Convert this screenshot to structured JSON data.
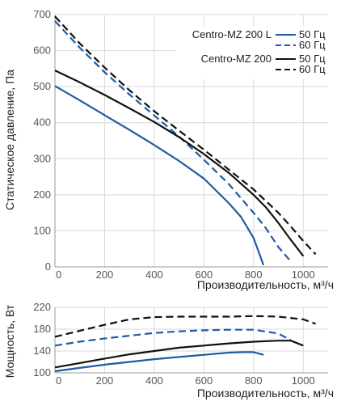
{
  "chart_data": [
    {
      "type": "line",
      "id": "pressure",
      "xlabel": "Производительность, м³/ч",
      "ylabel": "Статическое давление, Па",
      "xlim": [
        0,
        1100
      ],
      "ylim": [
        0,
        700
      ],
      "x_ticks": [
        "0",
        "200",
        "400",
        "600",
        "800",
        "1000"
      ],
      "y_ticks": [
        "0",
        "100",
        "200",
        "300",
        "400",
        "500",
        "600",
        "700"
      ],
      "grid": true,
      "legend": {
        "placement": "top-right",
        "groups": [
          {
            "label": "Centro-MZ 200 L",
            "entries": [
              "50 Гц",
              "60 Гц"
            ]
          },
          {
            "label": "Centro-MZ 200",
            "entries": [
              "50 Гц",
              "60 Гц"
            ]
          }
        ]
      },
      "series": [
        {
          "model": "Centro-MZ 200 L",
          "freq": "50 Гц",
          "color": "#1f5aa6",
          "dash": "solid",
          "points": [
            [
              0,
              502
            ],
            [
              100,
              462
            ],
            [
              200,
              421
            ],
            [
              300,
              380
            ],
            [
              400,
              338
            ],
            [
              500,
              294
            ],
            [
              600,
              245
            ],
            [
              700,
              177
            ],
            [
              750,
              138
            ],
            [
              800,
              80
            ],
            [
              840,
              5
            ]
          ]
        },
        {
          "model": "Centro-MZ 200 L",
          "freq": "60 Гц",
          "color": "#1f5aa6",
          "dash": "dashed",
          "points": [
            [
              0,
              682
            ],
            [
              100,
              608
            ],
            [
              200,
              540
            ],
            [
              300,
              478
            ],
            [
              400,
              420
            ],
            [
              500,
              362
            ],
            [
              600,
              297
            ],
            [
              700,
              230
            ],
            [
              800,
              150
            ],
            [
              850,
              107
            ],
            [
              900,
              55
            ],
            [
              950,
              15
            ]
          ]
        },
        {
          "model": "Centro-MZ 200",
          "freq": "50 Гц",
          "color": "#111111",
          "dash": "solid",
          "points": [
            [
              0,
              545
            ],
            [
              100,
              512
            ],
            [
              200,
              477
            ],
            [
              300,
              440
            ],
            [
              400,
              402
            ],
            [
              500,
              360
            ],
            [
              600,
              313
            ],
            [
              700,
              261
            ],
            [
              800,
              200
            ],
            [
              850,
              165
            ],
            [
              900,
              122
            ],
            [
              950,
              75
            ],
            [
              1000,
              30
            ]
          ]
        },
        {
          "model": "Centro-MZ 200",
          "freq": "60 Гц",
          "color": "#111111",
          "dash": "dashed",
          "points": [
            [
              0,
              695
            ],
            [
              100,
              620
            ],
            [
              200,
              553
            ],
            [
              300,
              490
            ],
            [
              400,
              432
            ],
            [
              500,
              378
            ],
            [
              600,
              325
            ],
            [
              700,
              270
            ],
            [
              800,
              215
            ],
            [
              900,
              150
            ],
            [
              950,
              112
            ],
            [
              1000,
              72
            ],
            [
              1050,
              35
            ]
          ]
        }
      ]
    },
    {
      "type": "line",
      "id": "power",
      "xlabel": "Производительность, м³/ч",
      "ylabel": "Мощность, Вт",
      "xlim": [
        0,
        1100
      ],
      "ylim": [
        100,
        220
      ],
      "x_ticks": [
        "0",
        "200",
        "400",
        "600",
        "800",
        "1000"
      ],
      "y_ticks": [
        "100",
        "140",
        "180",
        "220"
      ],
      "grid": true,
      "series": [
        {
          "model": "Centro-MZ 200 L",
          "freq": "50 Гц",
          "color": "#1f5aa6",
          "dash": "solid",
          "points": [
            [
              0,
              103
            ],
            [
              100,
              109
            ],
            [
              200,
              115
            ],
            [
              300,
              120
            ],
            [
              400,
              125
            ],
            [
              500,
              129
            ],
            [
              600,
              133
            ],
            [
              700,
              137
            ],
            [
              760,
              138
            ],
            [
              800,
              138
            ],
            [
              840,
              133
            ]
          ]
        },
        {
          "model": "Centro-MZ 200 L",
          "freq": "60 Гц",
          "color": "#1f5aa6",
          "dash": "dashed",
          "points": [
            [
              0,
              150
            ],
            [
              100,
              157
            ],
            [
              200,
              163
            ],
            [
              300,
              168
            ],
            [
              400,
              173
            ],
            [
              500,
              176
            ],
            [
              600,
              178
            ],
            [
              700,
              179
            ],
            [
              800,
              179
            ],
            [
              900,
              172
            ],
            [
              950,
              160
            ]
          ]
        },
        {
          "model": "Centro-MZ 200",
          "freq": "50 Гц",
          "color": "#111111",
          "dash": "solid",
          "points": [
            [
              0,
              110
            ],
            [
              100,
              118
            ],
            [
              200,
              126
            ],
            [
              300,
              134
            ],
            [
              400,
              140
            ],
            [
              500,
              146
            ],
            [
              600,
              150
            ],
            [
              700,
              154
            ],
            [
              800,
              157
            ],
            [
              900,
              159
            ],
            [
              950,
              159
            ],
            [
              1000,
              150
            ]
          ]
        },
        {
          "model": "Centro-MZ 200",
          "freq": "60 Гц",
          "color": "#111111",
          "dash": "dashed",
          "points": [
            [
              0,
              166
            ],
            [
              100,
              177
            ],
            [
              200,
              188
            ],
            [
              300,
              198
            ],
            [
              400,
              202
            ],
            [
              500,
              203
            ],
            [
              600,
              203
            ],
            [
              700,
              203
            ],
            [
              800,
              204
            ],
            [
              900,
              203
            ],
            [
              1000,
              198
            ],
            [
              1050,
              190
            ]
          ]
        }
      ]
    }
  ]
}
